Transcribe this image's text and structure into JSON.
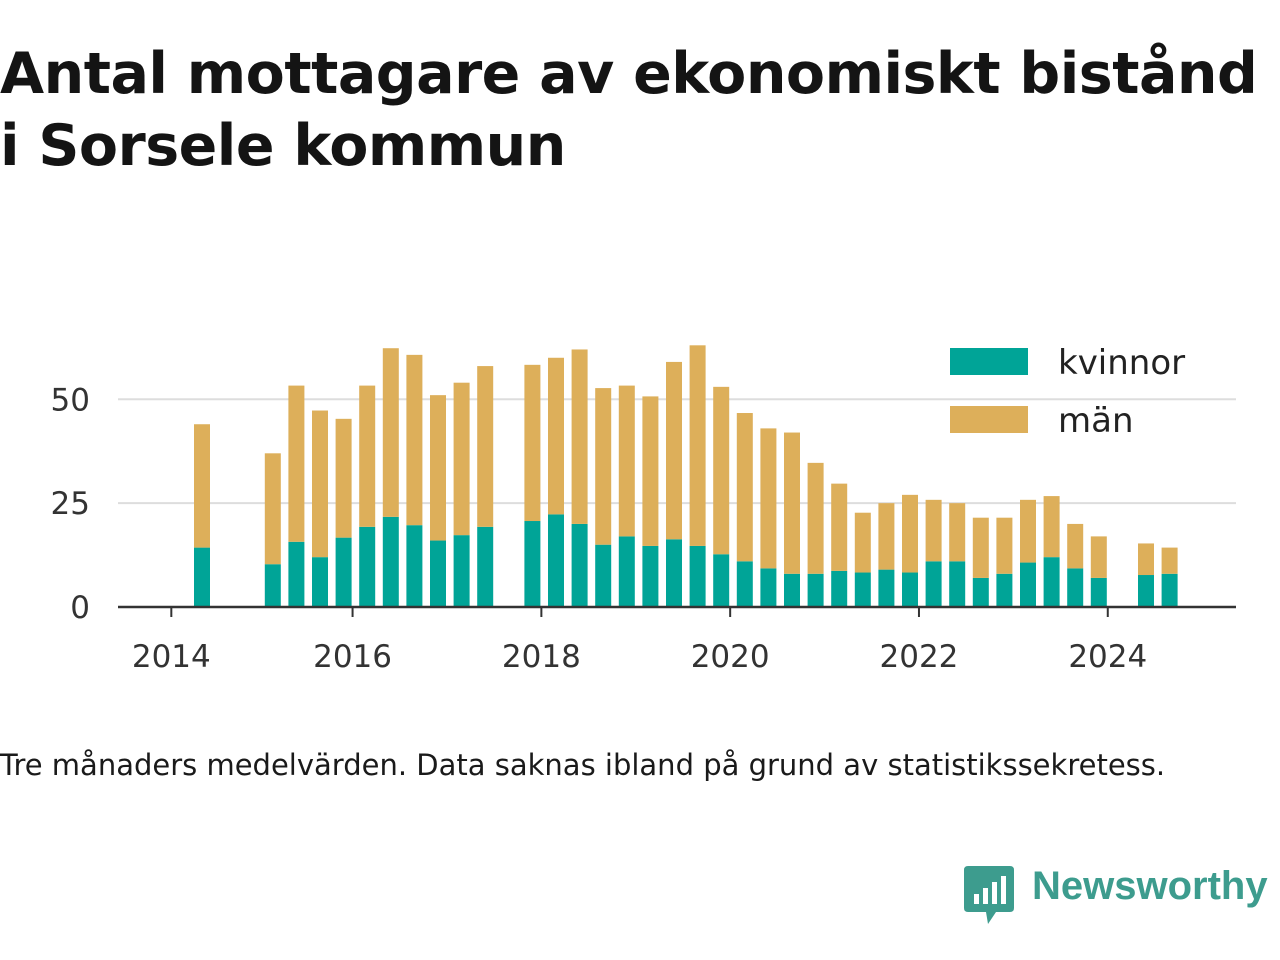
{
  "title": "Antal mottagare av ekonomiskt bistånd i Sorsele kommun",
  "note": "Tre månaders medelvärden. Data saknas ibland på grund av statistikssekretess.",
  "brand": {
    "name": "Newsworthy",
    "color": "#3d9c8e",
    "icon": "newsworthy-logo-icon"
  },
  "colors": {
    "kvinnor": "#00a497",
    "man": "#ddaf5a",
    "grid": "#dddddd",
    "axis": "#333333"
  },
  "chart_data": {
    "type": "bar",
    "stacked": true,
    "ylim": [
      0,
      65
    ],
    "yticks": [
      "0",
      "25",
      "50"
    ],
    "xticks": [
      "2014",
      "2016",
      "2018",
      "2020",
      "2022",
      "2024"
    ],
    "grid": true,
    "legend_position": "top-right",
    "categories": [
      "2014-Q2",
      "2014-Q3",
      "2014-Q4",
      "2015-Q1",
      "2015-Q2",
      "2015-Q3",
      "2015-Q4",
      "2016-Q1",
      "2016-Q2",
      "2016-Q3",
      "2016-Q4",
      "2017-Q1",
      "2017-Q2",
      "2017-Q3",
      "2017-Q4",
      "2018-Q1",
      "2018-Q2",
      "2018-Q3",
      "2018-Q4",
      "2019-Q1",
      "2019-Q2",
      "2019-Q3",
      "2019-Q4",
      "2020-Q1",
      "2020-Q2",
      "2020-Q3",
      "2020-Q4",
      "2021-Q1",
      "2021-Q2",
      "2021-Q3",
      "2021-Q4",
      "2022-Q1",
      "2022-Q2",
      "2022-Q3",
      "2022-Q4",
      "2023-Q1",
      "2023-Q2",
      "2023-Q3",
      "2023-Q4",
      "2024-Q1",
      "2024-Q2",
      "2024-Q3"
    ],
    "series": [
      {
        "name": "kvinnor",
        "values": [
          14.3,
          null,
          null,
          10.3,
          15.7,
          12,
          16.7,
          19.3,
          21.7,
          19.7,
          16,
          17.3,
          19.3,
          null,
          20.7,
          22.3,
          20,
          15,
          17,
          14.7,
          16.3,
          14.7,
          12.7,
          11,
          9.3,
          8,
          8,
          8.7,
          8.3,
          9,
          8.3,
          11,
          11,
          7,
          8,
          10.7,
          12,
          9.3,
          7,
          null,
          7.7,
          8
        ]
      },
      {
        "name": "män",
        "values": [
          29.7,
          null,
          null,
          26.7,
          37.6,
          35.3,
          28.6,
          34,
          40.6,
          41,
          35,
          36.7,
          38.7,
          null,
          37.6,
          37.7,
          42,
          37.7,
          36.3,
          36,
          42.7,
          48.3,
          40.3,
          35.7,
          33.7,
          34,
          26.7,
          21,
          14.4,
          16,
          18.7,
          14.8,
          14,
          14.5,
          13.5,
          15.1,
          14.7,
          10.7,
          10,
          null,
          7.6,
          6.3
        ]
      }
    ]
  }
}
